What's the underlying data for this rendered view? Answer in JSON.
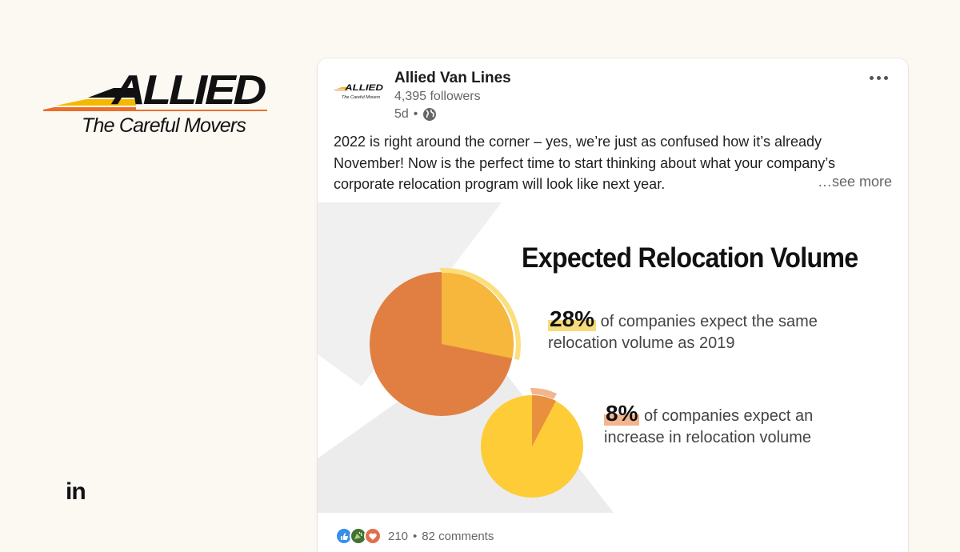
{
  "brand": {
    "logo_text": "ALLIED",
    "tagline": "The Careful Movers",
    "accent_colors": [
      "#f5b800",
      "#e8702a",
      "#111111"
    ]
  },
  "linkedin": {
    "mark": "in"
  },
  "post": {
    "author": {
      "name": "Allied Van Lines",
      "followers": "4,395 followers",
      "logo_text": "ALLIED",
      "logo_tagline": "The Careful Movers"
    },
    "age": "5d",
    "meta_separator": "•",
    "visibility_icon": "globe-icon",
    "more_icon": "more-options-icon",
    "text": "2022 is right around the corner – yes, we’re just as confused how it’s already November! Now is the perfect time to start thinking about what your company’s corporate relocation program will look like next year.",
    "see_more": "…see more",
    "infographic": {
      "title": "Expected Relocation Volume",
      "stats": [
        {
          "percent": "28%",
          "text_line1": "of companies expect the same",
          "text_line2": "relocation volume as 2019"
        },
        {
          "percent": "8%",
          "text_line1": "of companies expect an",
          "text_line2": "increase in relocation volume"
        }
      ],
      "colors": {
        "orange": "#e07f41",
        "yellow": "#f6b73c",
        "light_yellow": "#fbdf7c",
        "gold": "#fdcc37"
      }
    },
    "reactions": {
      "icons": [
        "like-icon",
        "celebrate-icon",
        "love-icon"
      ],
      "count": "210",
      "separator": "•",
      "comments": "82 comments"
    }
  }
}
